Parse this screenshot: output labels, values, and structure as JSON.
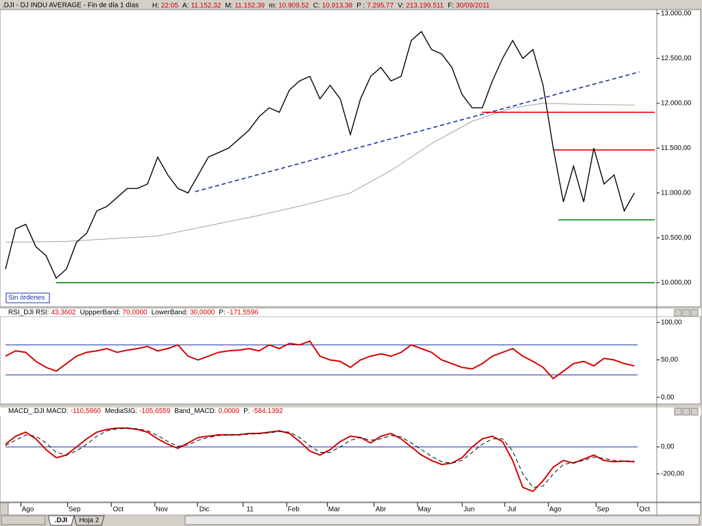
{
  "header": {
    "symbol": ".DJI - DJ INDU AVERAGE - Fin de día 1 días",
    "fields": [
      {
        "label": "H:",
        "value": "22:05"
      },
      {
        "label": "A:",
        "value": "11.152,32"
      },
      {
        "label": "M:",
        "value": "11.152,39"
      },
      {
        "label": "m:",
        "value": "10.909,52"
      },
      {
        "label": "C:",
        "value": "10.913,38"
      },
      {
        "label": "P :",
        "value": "7.295,77"
      },
      {
        "label": "V:",
        "value": "213.199.511"
      },
      {
        "label": "F:",
        "value": "30/09/2011"
      }
    ]
  },
  "chart_data": [
    {
      "type": "line",
      "annotation": "Sin órdenes",
      "xlim": [
        0,
        64
      ],
      "ylim": [
        9730,
        13045
      ],
      "yticks": [
        {
          "value": 10000,
          "label": "10.000,00"
        },
        {
          "value": 10500,
          "label": "10.500,00"
        },
        {
          "value": 11000,
          "label": "11.000,00"
        },
        {
          "value": 11500,
          "label": "11.500,00"
        },
        {
          "value": 12000,
          "label": "12.000,00"
        },
        {
          "value": 12500,
          "label": "12.500,00"
        },
        {
          "value": 13000,
          "label": "13.000,00"
        }
      ],
      "x": [
        0,
        1,
        2,
        3,
        4,
        5,
        6,
        7,
        8,
        9,
        10,
        11,
        12,
        13,
        14,
        15,
        16,
        17,
        18,
        19,
        20,
        21,
        22,
        23,
        24,
        25,
        26,
        27,
        28,
        29,
        30,
        31,
        32,
        33,
        34,
        35,
        36,
        37,
        38,
        39,
        40,
        41,
        42,
        43,
        44,
        45,
        46,
        47,
        48,
        49,
        50,
        51,
        52,
        53,
        54,
        55,
        56,
        57,
        58,
        59,
        60,
        61,
        62
      ],
      "series": [
        {
          "color": "#000000",
          "values": [
            10150,
            10600,
            10650,
            10400,
            10300,
            10050,
            10150,
            10450,
            10550,
            10800,
            10850,
            10950,
            11050,
            11050,
            11100,
            11400,
            11200,
            11050,
            11000,
            11200,
            11400,
            11450,
            11500,
            11600,
            11700,
            11850,
            11950,
            11900,
            12150,
            12250,
            12300,
            12050,
            12200,
            12050,
            11650,
            12050,
            12300,
            12400,
            12250,
            12300,
            12700,
            12800,
            12600,
            12550,
            12400,
            12100,
            11950,
            11950,
            12250,
            12500,
            12700,
            12500,
            12600,
            12200,
            11500,
            10900,
            11300,
            10900,
            11500,
            11100,
            11200,
            10800,
            11000
          ]
        }
      ],
      "lines": [
        {
          "color": "#a0a0a0",
          "dash": false,
          "x": [
            0,
            6,
            15,
            25,
            30,
            34,
            38,
            42,
            46,
            50,
            53,
            56,
            62
          ],
          "values": [
            10450,
            10460,
            10520,
            10750,
            10880,
            11000,
            11250,
            11550,
            11800,
            11950,
            12000,
            11990,
            11980
          ]
        },
        {
          "color": "#1c2fa0",
          "dash": true,
          "x": [
            18.7,
            62.5
          ],
          "values": [
            11015,
            12350
          ]
        },
        {
          "color": "#e00000",
          "dash": false,
          "x": [
            47,
            64
          ],
          "values": [
            11900,
            11900
          ]
        },
        {
          "color": "#e00000",
          "dash": false,
          "x": [
            54,
            64
          ],
          "values": [
            11480,
            11480
          ]
        },
        {
          "color": "#008000",
          "dash": false,
          "x": [
            54.5,
            64
          ],
          "values": [
            10700,
            10700
          ]
        },
        {
          "color": "#008000",
          "dash": false,
          "x": [
            5,
            64
          ],
          "values": [
            10000,
            10000
          ]
        }
      ]
    },
    {
      "type": "line",
      "fields": [
        {
          "label": "RSI_DJI  RSI:",
          "value": "43,3602"
        },
        {
          "label": "UppperBand:",
          "value": "70,0000"
        },
        {
          "label": "LowerBand:",
          "value": "30,0000"
        },
        {
          "label": "P:",
          "value": "-171,5596"
        }
      ],
      "xlim": [
        0,
        64
      ],
      "ylim": [
        -9,
        108
      ],
      "yticks": [
        {
          "value": 0,
          "label": "0,00"
        },
        {
          "value": 50,
          "label": "50,00"
        },
        {
          "value": 100,
          "label": "100,00"
        }
      ],
      "hlines": [
        70,
        30
      ],
      "hline_color": "#1c2fa0",
      "x": [
        0,
        1,
        2,
        3,
        4,
        5,
        6,
        7,
        8,
        9,
        10,
        11,
        12,
        13,
        14,
        15,
        16,
        17,
        18,
        19,
        20,
        21,
        22,
        23,
        24,
        25,
        26,
        27,
        28,
        29,
        30,
        31,
        32,
        33,
        34,
        35,
        36,
        37,
        38,
        39,
        40,
        41,
        42,
        43,
        44,
        45,
        46,
        47,
        48,
        49,
        50,
        51,
        52,
        53,
        54,
        55,
        56,
        57,
        58,
        59,
        60,
        61,
        62
      ],
      "series": [
        {
          "color": "#d40000",
          "values": [
            55,
            62,
            60,
            48,
            40,
            35,
            45,
            55,
            60,
            62,
            65,
            60,
            63,
            65,
            68,
            62,
            65,
            70,
            55,
            50,
            55,
            60,
            62,
            63,
            65,
            62,
            70,
            65,
            72,
            70,
            75,
            55,
            50,
            48,
            40,
            50,
            55,
            58,
            55,
            60,
            70,
            65,
            60,
            50,
            45,
            40,
            38,
            45,
            55,
            60,
            65,
            55,
            48,
            40,
            25,
            35,
            45,
            48,
            42,
            52,
            50,
            45,
            42
          ]
        }
      ]
    },
    {
      "type": "line",
      "fields": [
        {
          "label": "MACD_.DJI  MACD:",
          "value": "-110,5960"
        },
        {
          "label": "MediaSIG:",
          "value": "-105,6559"
        },
        {
          "label": "Band_MACD:",
          "value": "0,0000"
        },
        {
          "label": "P:",
          "value": "-584,1392"
        }
      ],
      "xlim": [
        0,
        64
      ],
      "ylim": [
        -409,
        232
      ],
      "yticks": [
        {
          "value": -200,
          "label": "-200,00"
        },
        {
          "value": 0,
          "label": "0,00"
        }
      ],
      "xticks": [
        {
          "value": 2.2,
          "label": "Ago"
        },
        {
          "value": 6.8,
          "label": "Sep"
        },
        {
          "value": 11.1,
          "label": "Oct"
        },
        {
          "value": 15.4,
          "label": "Nov"
        },
        {
          "value": 19.6,
          "label": "Dic"
        },
        {
          "value": 24.1,
          "label": "11"
        },
        {
          "value": 28.4,
          "label": "Feb"
        },
        {
          "value": 32.4,
          "label": "Mar"
        },
        {
          "value": 37.0,
          "label": "Abr"
        },
        {
          "value": 41.3,
          "label": "May"
        },
        {
          "value": 45.7,
          "label": "Jun"
        },
        {
          "value": 49.9,
          "label": "Jul"
        },
        {
          "value": 54.2,
          "label": "Ago"
        },
        {
          "value": 58.9,
          "label": "Sep"
        },
        {
          "value": 63.0,
          "label": "Oct"
        }
      ],
      "hlines": [
        0
      ],
      "hline_color": "#1c2fa0",
      "x": [
        0,
        1,
        2,
        3,
        4,
        5,
        6,
        7,
        8,
        9,
        10,
        11,
        12,
        13,
        14,
        15,
        16,
        17,
        18,
        19,
        20,
        21,
        22,
        23,
        24,
        25,
        26,
        27,
        28,
        29,
        30,
        31,
        32,
        33,
        34,
        35,
        36,
        37,
        38,
        39,
        40,
        41,
        42,
        43,
        44,
        45,
        46,
        47,
        48,
        49,
        50,
        51,
        52,
        53,
        54,
        55,
        56,
        57,
        58,
        59,
        60,
        61,
        62
      ],
      "series": [
        {
          "color": "#d40000",
          "dash": false,
          "values": [
            20,
            80,
            110,
            60,
            -20,
            -80,
            -60,
            0,
            60,
            110,
            130,
            140,
            140,
            130,
            110,
            60,
            20,
            -10,
            30,
            70,
            80,
            90,
            90,
            90,
            100,
            100,
            110,
            120,
            100,
            40,
            -30,
            -60,
            -20,
            40,
            80,
            70,
            30,
            80,
            100,
            60,
            0,
            -60,
            -100,
            -130,
            -120,
            -80,
            0,
            60,
            80,
            40,
            -100,
            -300,
            -330,
            -250,
            -150,
            -100,
            -120,
            -90,
            -60,
            -100,
            -110,
            -105,
            -110
          ]
        },
        {
          "color": "#000000",
          "dash": true,
          "values": [
            10,
            50,
            90,
            80,
            30,
            -40,
            -60,
            -30,
            20,
            80,
            120,
            135,
            140,
            135,
            120,
            85,
            40,
            5,
            15,
            50,
            70,
            85,
            90,
            90,
            95,
            100,
            105,
            115,
            110,
            70,
            10,
            -40,
            -40,
            0,
            50,
            70,
            50,
            60,
            85,
            75,
            30,
            -20,
            -70,
            -110,
            -120,
            -100,
            -40,
            20,
            60,
            60,
            -30,
            -200,
            -300,
            -290,
            -200,
            -130,
            -115,
            -100,
            -75,
            -85,
            -100,
            -105,
            -105
          ]
        }
      ]
    }
  ],
  "tabs": [
    ".DJI",
    "Hoja 2"
  ]
}
